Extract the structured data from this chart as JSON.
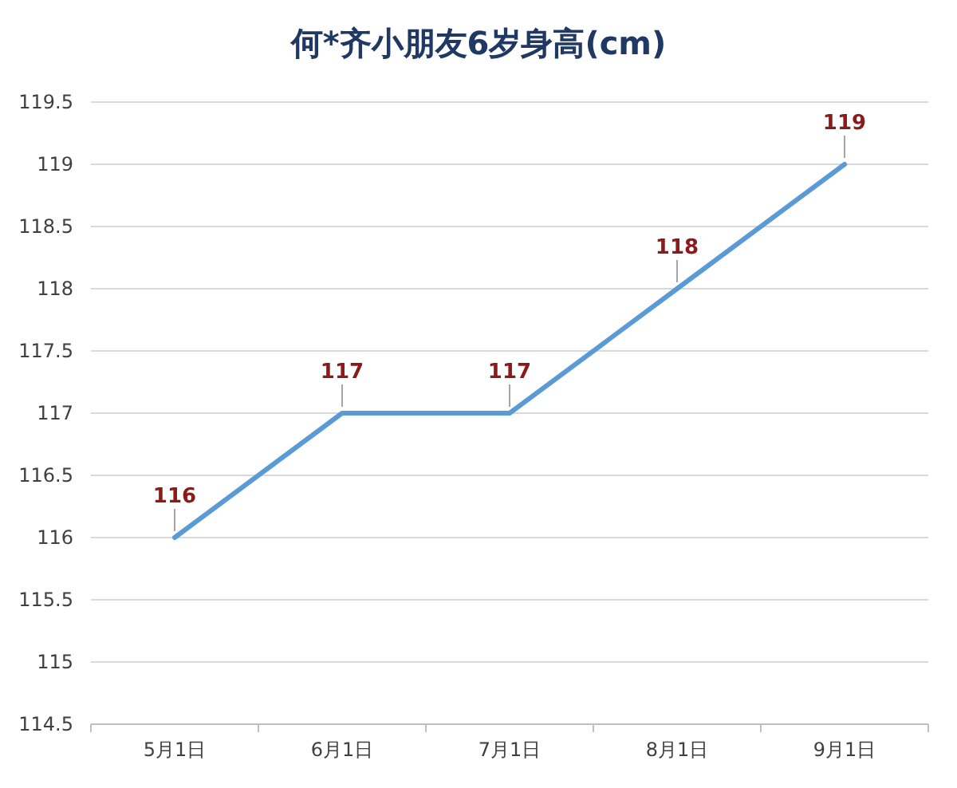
{
  "chart_data": {
    "type": "line",
    "title": "何*齐小朋友6岁身高(cm)",
    "categories": [
      "5月1日",
      "6月1日",
      "7月1日",
      "8月1日",
      "9月1日"
    ],
    "series": [
      {
        "color": "#5b9bd5",
        "values": [
          116,
          117,
          117,
          118,
          119
        ]
      }
    ],
    "ylim": [
      114.5,
      119.5
    ],
    "yticks": [
      114.5,
      115,
      115.5,
      116,
      116.5,
      117,
      117.5,
      118,
      118.5,
      119,
      119.5
    ],
    "grid": "y",
    "data_labels": true,
    "marker": "none",
    "line_style": "solid"
  }
}
